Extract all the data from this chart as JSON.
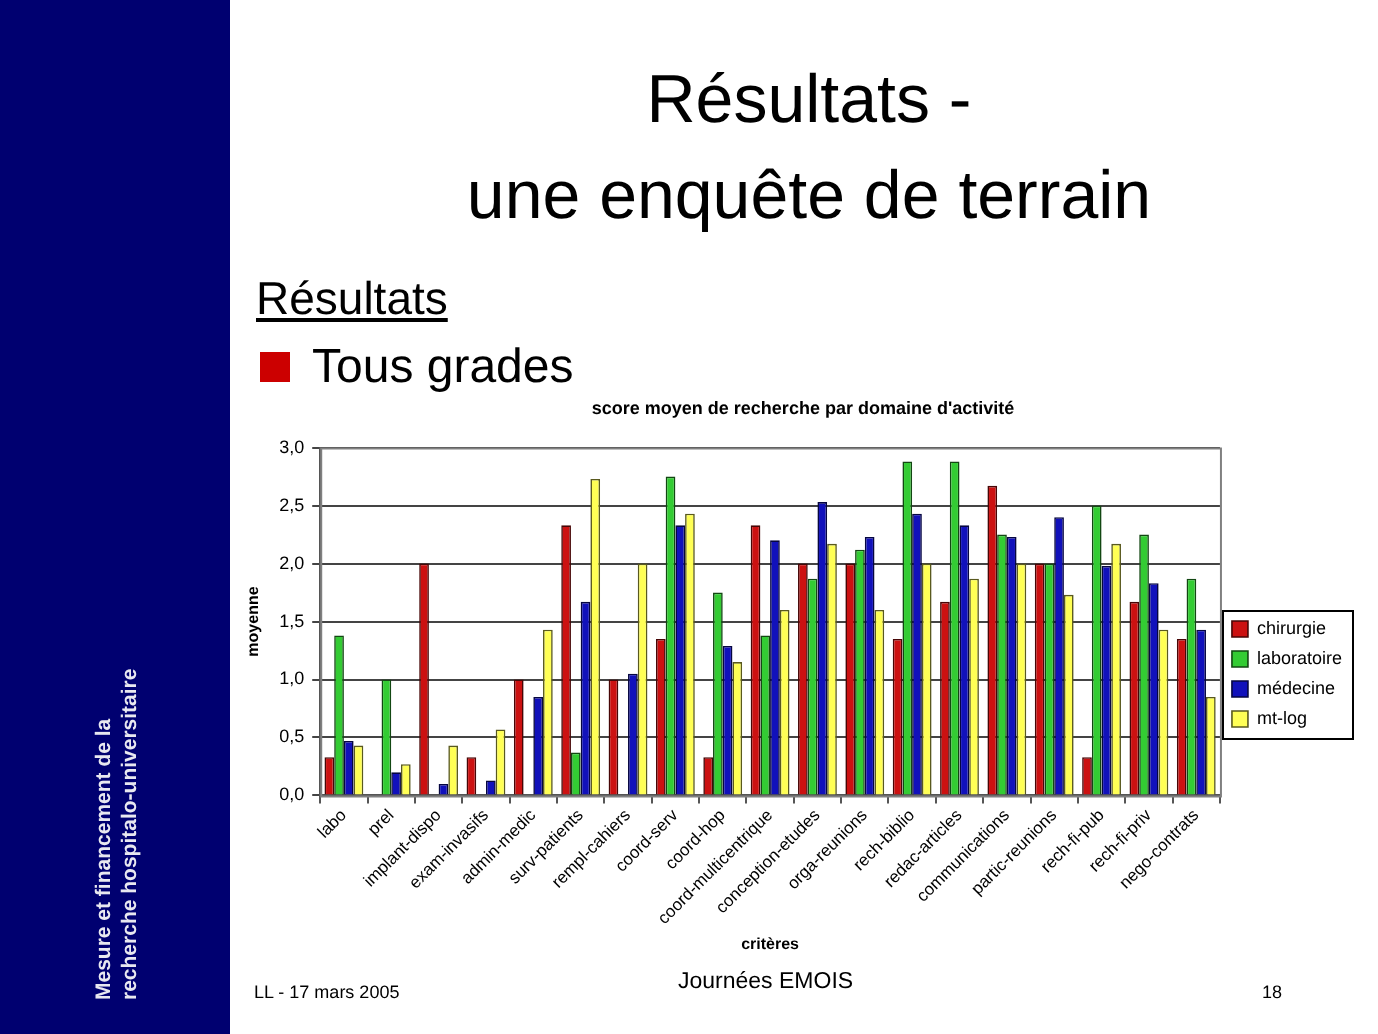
{
  "chart_data": {
    "type": "bar",
    "title": "Résultats -\nune enquête de terrain",
    "subtitle": "score moyen de recherche par domaine d'activité",
    "xlabel": "critères",
    "ylabel": "moyenne",
    "categories": [
      "labo",
      "prel",
      "implant-dispo",
      "exam-invasifs",
      "admin-medic",
      "surv-patients",
      "rempl-cahiers",
      "coord-serv",
      "coord-hop",
      "coord-multicentrique",
      "conception-etudes",
      "orga-reunions",
      "rech-biblio",
      "redac-articles",
      "communications",
      "partic-reunions",
      "rech-fi-pub",
      "rech-fi-priv",
      "nego-contrats"
    ],
    "series": [
      {
        "name": "chirurgie",
        "color": "#cc1111",
        "values": [
          0.33,
          0,
          2.0,
          0.33,
          1.0,
          2.33,
          1.0,
          1.35,
          0.33,
          2.33,
          2.0,
          2.0,
          1.35,
          1.67,
          2.67,
          2.0,
          0.33,
          1.67,
          1.35
        ]
      },
      {
        "name": "laboratoire",
        "color": "#33cc33",
        "values": [
          1.38,
          1.0,
          0,
          0,
          0,
          0.37,
          0,
          2.75,
          1.75,
          1.38,
          1.87,
          2.12,
          2.88,
          2.88,
          2.25,
          2.0,
          2.5,
          2.25,
          1.87
        ]
      },
      {
        "name": "médecine",
        "color": "#1111bb",
        "values": [
          0.47,
          0.2,
          0.1,
          0.13,
          0.85,
          1.67,
          1.05,
          2.33,
          1.29,
          2.2,
          2.53,
          2.23,
          2.43,
          2.33,
          2.23,
          2.4,
          1.98,
          1.83,
          1.43
        ]
      },
      {
        "name": "mt-log",
        "color": "#ffff55",
        "values": [
          0.43,
          0.27,
          0.43,
          0.57,
          1.43,
          2.73,
          2.0,
          2.43,
          1.15,
          1.6,
          2.17,
          1.6,
          2.0,
          1.87,
          2.0,
          1.73,
          2.17,
          1.43,
          0.85
        ]
      }
    ],
    "ylim": [
      0,
      3
    ],
    "yticks": [
      {
        "value": 0,
        "label": "0,0"
      },
      {
        "value": 0.5,
        "label": "0,5"
      },
      {
        "value": 1,
        "label": "1,0"
      },
      {
        "value": 1.5,
        "label": "1,5"
      },
      {
        "value": 2,
        "label": "2,0"
      },
      {
        "value": 2.5,
        "label": "2,5"
      },
      {
        "value": 3,
        "label": "3,0"
      }
    ],
    "grid": "y",
    "legend": "right",
    "annotations": [
      "Résultats",
      "Tous grades",
      "Mesure et financement de la\nrecherche hospitalo-universitaire",
      "LL - 17 mars 2005",
      "Journées EMOIS",
      "18"
    ]
  }
}
